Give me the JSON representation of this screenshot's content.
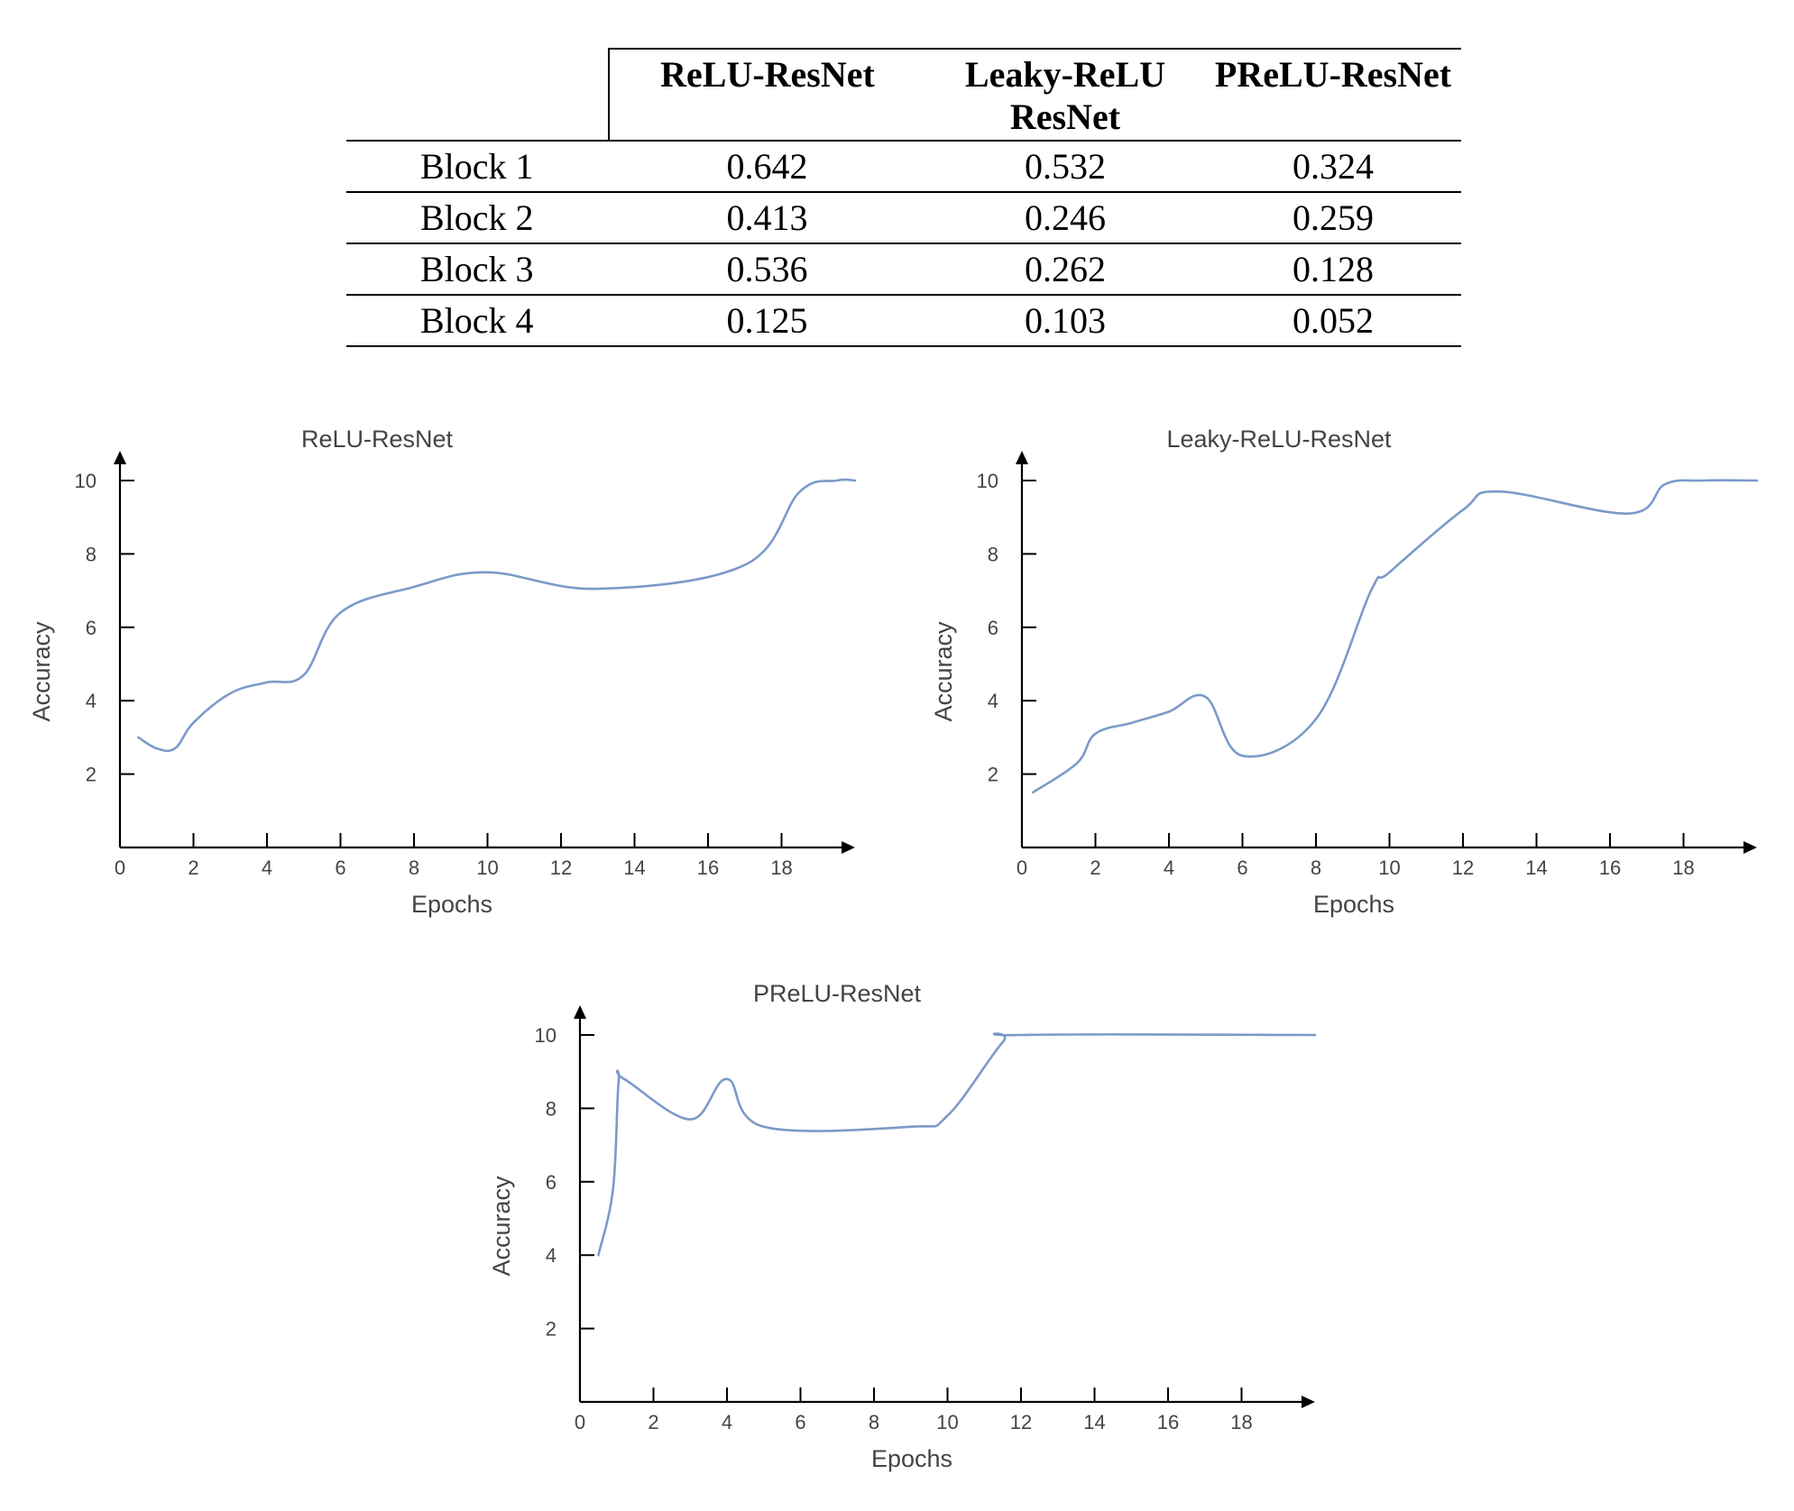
{
  "table": {
    "columns": [
      "ReLU-ResNet",
      "Leaky-ReLU ResNet",
      "PReLU-ResNet"
    ],
    "rows": [
      {
        "label": "Block 1",
        "values": [
          "0.642",
          "0.532",
          "0.324"
        ]
      },
      {
        "label": "Block 2",
        "values": [
          "0.413",
          "0.246",
          "0.259"
        ]
      },
      {
        "label": "Block 3",
        "values": [
          "0.536",
          "0.262",
          "0.128"
        ]
      },
      {
        "label": "Block 4",
        "values": [
          "0.125",
          "0.103",
          "0.052"
        ]
      }
    ]
  },
  "chart_data": [
    {
      "type": "line",
      "title": "ReLU-ResNet",
      "xlabel": "Epochs",
      "ylabel": "Accuracy",
      "x_ticks": [
        0,
        2,
        4,
        6,
        8,
        10,
        12,
        14,
        16,
        18
      ],
      "y_ticks": [
        2,
        4,
        6,
        8,
        10
      ],
      "xlim": [
        0,
        20
      ],
      "ylim": [
        0,
        11
      ],
      "grid": false,
      "line_color": "#7b9ac9",
      "series": [
        {
          "x": [
            0.5,
            1,
            1.5,
            2,
            3,
            4,
            5,
            6,
            8,
            10,
            13,
            17,
            18.5,
            19.5,
            20
          ],
          "y": [
            3.0,
            2.7,
            2.7,
            3.4,
            4.2,
            4.5,
            4.7,
            6.4,
            7.1,
            7.5,
            7.05,
            7.7,
            9.7,
            10.0,
            10.0
          ]
        }
      ]
    },
    {
      "type": "line",
      "title": "Leaky-ReLU-ResNet",
      "xlabel": "Epochs",
      "ylabel": "Accuracy",
      "x_ticks": [
        0,
        2,
        4,
        6,
        8,
        10,
        12,
        14,
        16,
        18
      ],
      "y_ticks": [
        2,
        4,
        6,
        8,
        10
      ],
      "xlim": [
        0,
        20
      ],
      "ylim": [
        0,
        11
      ],
      "grid": false,
      "line_color": "#7b9ac9",
      "series": [
        {
          "x": [
            0.3,
            1.5,
            2,
            3,
            4,
            5,
            6,
            8,
            9.5,
            10,
            12,
            13,
            16.5,
            17.5,
            18.5,
            20
          ],
          "y": [
            1.5,
            2.3,
            3.1,
            3.4,
            3.7,
            4.1,
            2.5,
            3.5,
            7.0,
            7.5,
            9.2,
            9.7,
            9.1,
            9.9,
            10.0,
            10.0
          ]
        }
      ]
    },
    {
      "type": "line",
      "title": "PReLU-ResNet",
      "xlabel": "Epochs",
      "ylabel": "Accuracy",
      "x_ticks": [
        0,
        2,
        4,
        6,
        8,
        10,
        12,
        14,
        16,
        18
      ],
      "y_ticks": [
        2,
        4,
        6,
        8,
        10
      ],
      "xlim": [
        0,
        20
      ],
      "ylim": [
        0,
        11
      ],
      "grid": false,
      "line_color": "#7b9ac9",
      "series": [
        {
          "x": [
            0.5,
            0.9,
            1.05,
            1.2,
            3,
            4,
            5,
            9,
            10,
            11.5,
            12,
            20
          ],
          "y": [
            4.0,
            5.8,
            8.7,
            8.8,
            7.7,
            8.8,
            7.5,
            7.5,
            7.8,
            9.8,
            10.0,
            10.0
          ]
        }
      ]
    }
  ]
}
